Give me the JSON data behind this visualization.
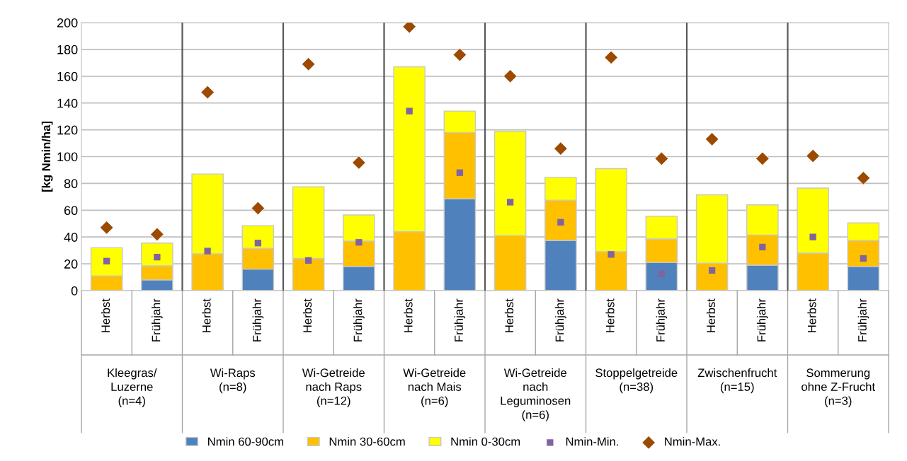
{
  "chart_data": {
    "type": "bar",
    "ylabel": "[kg Nmin/ha]",
    "categories": [
      "Herbst",
      "Frühjahr",
      "Herbst",
      "Frühjahr",
      "Herbst",
      "Frühjahr",
      "Herbst",
      "Frühjahr",
      "Herbst",
      "Frühjahr",
      "Herbst",
      "Frühjahr",
      "Herbst",
      "Frühjahr",
      "Herbst",
      "Frühjahr"
    ],
    "annotations": [
      "Kleegras/\nLuzerne\n(n=4)",
      "Wi-Raps\n(n=8)",
      "Wi-Getreide\nnach Raps\n(n=12)",
      "Wi-Getreide\nnach Mais\n(n=6)",
      "Wi-Getreide\nnach\nLeguminosen\n(n=6)",
      "Stoppelgetreide\n(n=38)",
      "Zwischenfrucht\n(n=15)",
      "Sommerung\nohne Z-Frucht\n(n=3)"
    ],
    "stacked": true,
    "series": [
      {
        "name": "Nmin 60-90cm",
        "color": "#4f81bd",
        "values": [
          0,
          8,
          0,
          16,
          0,
          18,
          0,
          68.5,
          0,
          37.5,
          0,
          21,
          0,
          19,
          0,
          18
        ]
      },
      {
        "name": "Nmin 30-60cm",
        "color": "#ffc000",
        "values": [
          11,
          10.5,
          27.5,
          15.5,
          24,
          19,
          44,
          49.5,
          41,
          30,
          29,
          17.5,
          20.5,
          22.5,
          28,
          19.5
        ]
      },
      {
        "name": "Nmin 0-30cm",
        "color": "#ffff00",
        "values": [
          21,
          17,
          59.5,
          17,
          53.5,
          19.5,
          123,
          16,
          78,
          17,
          62,
          17,
          51,
          22.5,
          48.5,
          13
        ]
      },
      {
        "name": "Nmin-Min.",
        "type": "scatter",
        "marker": "square",
        "color": "#8064a2",
        "values": [
          22,
          25,
          29.5,
          35.5,
          22.5,
          36,
          134,
          88,
          66,
          51,
          27,
          12.5,
          15,
          32.5,
          40,
          24
        ]
      },
      {
        "name": "Nmin-Max.",
        "type": "scatter",
        "marker": "diamond",
        "color": "#9c4a00",
        "values": [
          47,
          42,
          148,
          61.5,
          169,
          95.5,
          197,
          176,
          160,
          106,
          174,
          98.5,
          113,
          98.5,
          100.5,
          84
        ]
      }
    ],
    "ylim": [
      0,
      200
    ],
    "yticks": [
      0,
      20,
      40,
      60,
      80,
      100,
      120,
      140,
      160,
      180,
      200
    ],
    "grid": "y",
    "legend": "bottom"
  }
}
